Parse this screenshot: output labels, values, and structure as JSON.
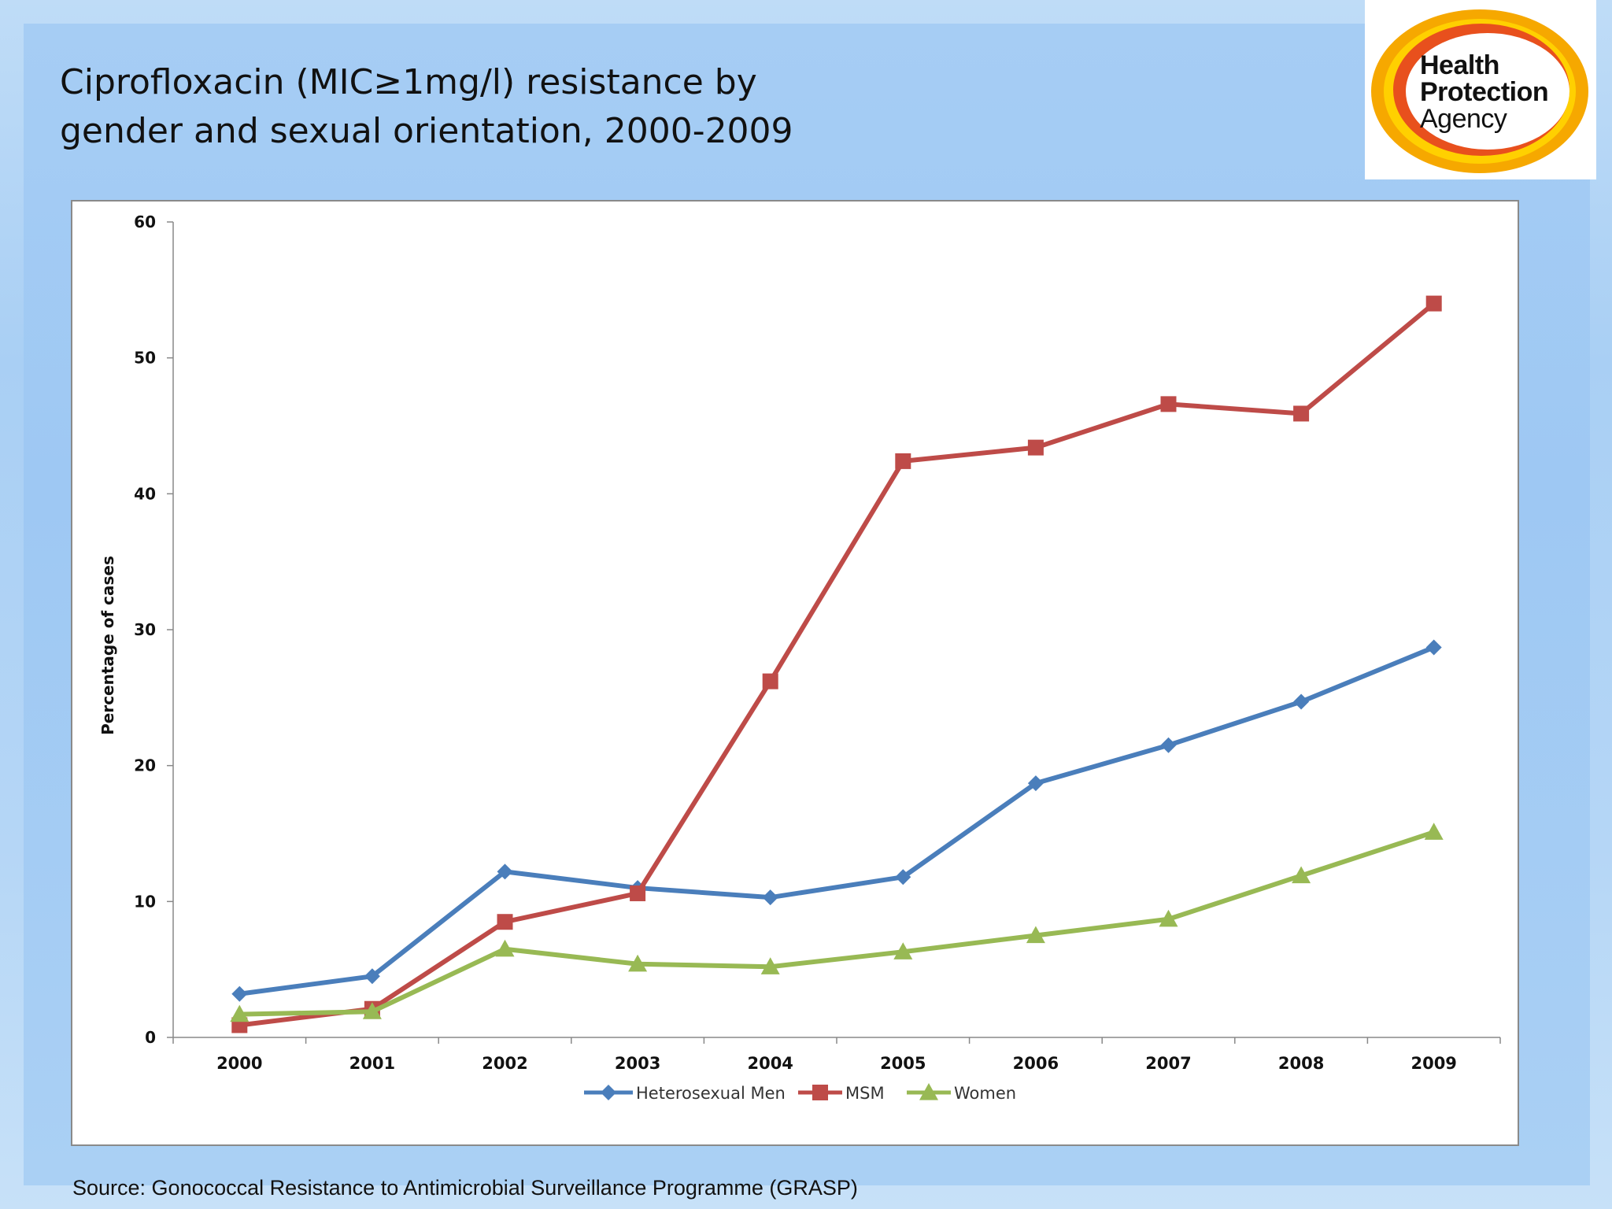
{
  "slide": {
    "title_line1": "Ciprofloxacin (MIC≥1mg/l) resistance by",
    "title_line2": "gender and sexual orientation, 2000-2009",
    "source": "Source: Gonococcal Resistance to Antimicrobial Surveillance Programme (GRASP)"
  },
  "logo": {
    "line1": "Health",
    "line2": "Protection",
    "line3": "Agency",
    "colors": {
      "outer": "#f6a800",
      "inner": "#e8501d",
      "ring_light": "#ffd000"
    }
  },
  "chart_data": {
    "type": "line",
    "title": "",
    "xlabel": "",
    "ylabel": "Percentage of cases",
    "categories": [
      "2000",
      "2001",
      "2002",
      "2003",
      "2004",
      "2005",
      "2006",
      "2007",
      "2008",
      "2009"
    ],
    "ylim": [
      0,
      60
    ],
    "yticks": [
      0,
      10,
      20,
      30,
      40,
      50,
      60
    ],
    "grid": false,
    "legend_position": "bottom",
    "series": [
      {
        "name": "Heterosexual Men",
        "color": "#4a7ebb",
        "marker": "diamond",
        "values": [
          3.2,
          4.5,
          12.2,
          11.0,
          10.3,
          11.8,
          18.7,
          21.5,
          24.7,
          28.7
        ]
      },
      {
        "name": "MSM",
        "color": "#be4b48",
        "marker": "square",
        "values": [
          0.9,
          2.1,
          8.5,
          10.6,
          26.2,
          42.4,
          43.4,
          46.6,
          45.9,
          54.0
        ]
      },
      {
        "name": "Women",
        "color": "#98b954",
        "marker": "triangle",
        "values": [
          1.7,
          1.9,
          6.5,
          5.4,
          5.2,
          6.3,
          7.5,
          8.7,
          11.9,
          15.1
        ]
      }
    ]
  }
}
